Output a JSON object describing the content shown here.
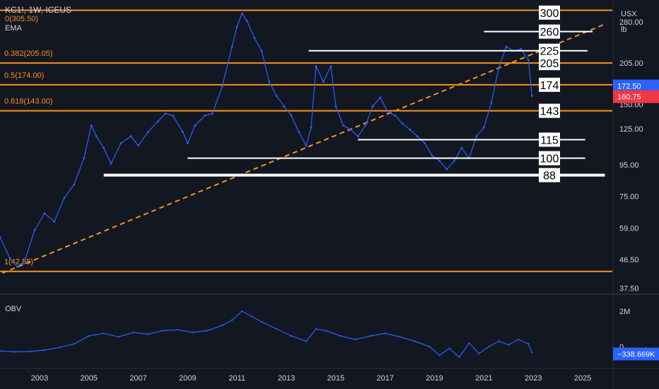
{
  "header": {
    "title": "KC1!, 1W, ICEUS",
    "fib_zero_label": "0(305.50)",
    "ema_label": "EMA"
  },
  "price_axis": {
    "currency": "USX",
    "unit": "lb",
    "ticks": [
      "280.00",
      "205.00",
      "150.00",
      "125.00",
      "95.00",
      "75.00",
      "59.00",
      "46.50",
      "37.50"
    ],
    "badge_current": {
      "label": "172.50",
      "color": "#2962ff"
    },
    "badge_last": {
      "label": "160.75",
      "color": "#f23645"
    }
  },
  "obv_panel": {
    "label": "OBV",
    "ticks": [
      "2M",
      "0"
    ],
    "badge": {
      "label": "−338.669K",
      "color": "#2962ff"
    }
  },
  "chart_data": {
    "type": "line",
    "scale": "log",
    "title": "",
    "xlabel": "",
    "ylabel": "",
    "x_ticks": [
      "2003",
      "2005",
      "2007",
      "2009",
      "2011",
      "2013",
      "2015",
      "2017",
      "2019",
      "2021",
      "2023",
      "2025"
    ],
    "ylim": [
      36,
      330
    ],
    "series": [
      {
        "color": "#2962ff",
        "x": [
          2001.4,
          2001.8,
          2002.1,
          2002.4,
          2002.8,
          2003.2,
          2003.6,
          2004.0,
          2004.4,
          2004.8,
          2005.1,
          2005.3,
          2005.6,
          2005.9,
          2006.3,
          2006.7,
          2007.0,
          2007.4,
          2007.8,
          2008.1,
          2008.4,
          2008.8,
          2009.0,
          2009.3,
          2009.7,
          2010.0,
          2010.4,
          2010.8,
          2011.0,
          2011.2,
          2011.4,
          2011.7,
          2012.0,
          2012.3,
          2012.6,
          2012.9,
          2013.2,
          2013.5,
          2013.8,
          2014.0,
          2014.2,
          2014.5,
          2014.8,
          2015.0,
          2015.3,
          2015.6,
          2015.9,
          2016.2,
          2016.5,
          2016.8,
          2017.1,
          2017.4,
          2017.7,
          2018.0,
          2018.3,
          2018.6,
          2018.9,
          2019.2,
          2019.5,
          2019.8,
          2020.1,
          2020.4,
          2020.7,
          2021.0,
          2021.3,
          2021.6,
          2021.9,
          2022.2,
          2022.5,
          2022.8,
          2022.95
        ],
        "values": [
          55,
          47,
          44,
          46,
          58,
          66,
          62,
          74,
          82,
          100,
          128,
          118,
          108,
          96,
          112,
          118,
          110,
          122,
          132,
          140,
          138,
          122,
          112,
          128,
          138,
          140,
          172,
          232,
          270,
          298,
          282,
          248,
          225,
          178,
          160,
          148,
          138,
          122,
          110,
          126,
          200,
          178,
          200,
          148,
          128,
          124,
          118,
          128,
          148,
          158,
          142,
          138,
          130,
          124,
          118,
          112,
          102,
          98,
          92,
          98,
          108,
          100,
          118,
          126,
          152,
          198,
          232,
          225,
          228,
          210,
          160
        ]
      }
    ],
    "obv": {
      "name": "OBV",
      "x": [
        2001.4,
        2002.0,
        2002.6,
        2003.2,
        2003.8,
        2004.4,
        2005.0,
        2005.6,
        2006.2,
        2006.8,
        2007.4,
        2008.0,
        2008.6,
        2009.2,
        2009.8,
        2010.4,
        2010.8,
        2011.2,
        2011.6,
        2012.0,
        2012.6,
        2013.2,
        2013.8,
        2014.2,
        2014.6,
        2015.2,
        2015.8,
        2016.4,
        2017.0,
        2017.6,
        2018.2,
        2018.8,
        2019.2,
        2019.6,
        2020.0,
        2020.4,
        2020.8,
        2021.2,
        2021.6,
        2022.0,
        2022.4,
        2022.8,
        2022.95
      ],
      "values": [
        -0.25,
        -0.3,
        -0.28,
        -0.2,
        -0.05,
        0.15,
        0.6,
        0.75,
        0.55,
        0.8,
        0.7,
        0.9,
        0.95,
        0.8,
        0.9,
        1.2,
        1.5,
        2.0,
        1.7,
        1.4,
        1.0,
        0.6,
        0.3,
        1.0,
        0.9,
        0.6,
        0.4,
        0.6,
        0.75,
        0.55,
        0.3,
        0.0,
        -0.5,
        -0.1,
        -0.6,
        0.2,
        -0.4,
        0.0,
        0.3,
        0.1,
        0.4,
        0.15,
        -0.34
      ]
    },
    "fib_levels": [
      {
        "label": "0(305.50)",
        "value": 305.5
      },
      {
        "label": "0.382(205.05)",
        "value": 205.05
      },
      {
        "label": "0.5(174.00)",
        "value": 174.0
      },
      {
        "label": "0.618(143.00)",
        "value": 143.0
      },
      {
        "label": "1(42.55)",
        "value": 42.55
      }
    ],
    "level_boxes": [
      "300",
      "260",
      "225",
      "205",
      "174",
      "143",
      "115",
      "100",
      "88"
    ],
    "white_lines": [
      {
        "value": 260,
        "from": 2021.0,
        "to": 2025.4
      },
      {
        "value": 225,
        "from": 2013.9,
        "to": 2025.2
      },
      {
        "value": 115,
        "from": 2015.9,
        "to": 2025.1
      },
      {
        "value": 100,
        "from": 2009.0,
        "to": 2025.1
      },
      {
        "value": 88,
        "from": 2005.6,
        "to": 2025.9
      }
    ],
    "trendline": {
      "x": [
        2001.5,
        2025.9
      ],
      "values": [
        42,
        275
      ],
      "color": "#f7931a",
      "style": "dashed"
    }
  }
}
